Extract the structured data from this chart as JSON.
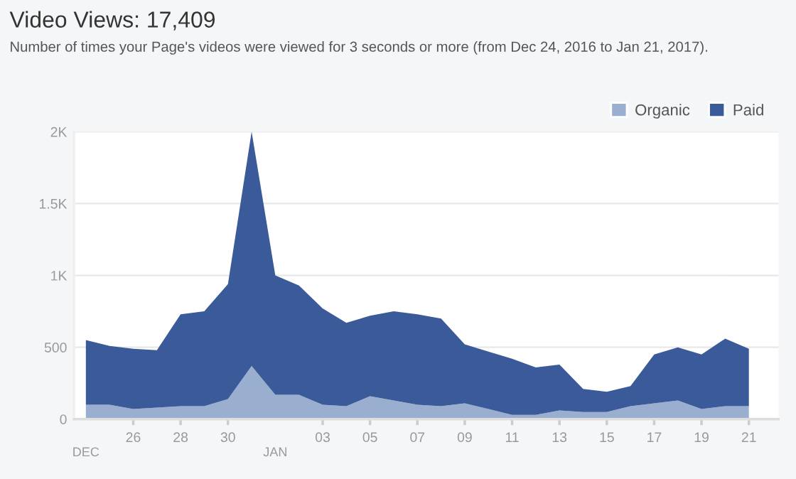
{
  "chart_data": {
    "type": "area",
    "stacked": true,
    "title": "Video Views: 17,409",
    "subtitle": "Number of times your Page's videos were viewed for 3 seconds or more (from Dec 24, 2016 to Jan 21, 2017).",
    "x": [
      "2016-12-24",
      "2016-12-25",
      "2016-12-26",
      "2016-12-27",
      "2016-12-28",
      "2016-12-29",
      "2016-12-30",
      "2016-12-31",
      "2017-01-01",
      "2017-01-02",
      "2017-01-03",
      "2017-01-04",
      "2017-01-05",
      "2017-01-06",
      "2017-01-07",
      "2017-01-08",
      "2017-01-09",
      "2017-01-10",
      "2017-01-11",
      "2017-01-12",
      "2017-01-13",
      "2017-01-14",
      "2017-01-15",
      "2017-01-16",
      "2017-01-17",
      "2017-01-18",
      "2017-01-19",
      "2017-01-20",
      "2017-01-21"
    ],
    "series": [
      {
        "name": "Organic",
        "color": "#9aaed0",
        "values": [
          100,
          100,
          70,
          80,
          90,
          90,
          140,
          370,
          170,
          170,
          100,
          90,
          160,
          130,
          100,
          90,
          110,
          70,
          30,
          30,
          60,
          50,
          50,
          90,
          110,
          130,
          70,
          90,
          90
        ]
      },
      {
        "name": "Paid",
        "color": "#3b5a99",
        "values": [
          450,
          410,
          420,
          400,
          640,
          660,
          800,
          1630,
          830,
          760,
          670,
          580,
          560,
          620,
          630,
          610,
          410,
          400,
          390,
          330,
          320,
          160,
          140,
          140,
          340,
          370,
          380,
          470,
          400
        ]
      }
    ],
    "xlim": [
      "2016-12-23T12:00",
      "2017-01-22T06:00"
    ],
    "xticks": [
      {
        "value": "2016-12-26",
        "label": "26"
      },
      {
        "value": "2016-12-28",
        "label": "28"
      },
      {
        "value": "2016-12-30",
        "label": "30"
      },
      {
        "value": "2017-01-03",
        "label": "03"
      },
      {
        "value": "2017-01-05",
        "label": "05"
      },
      {
        "value": "2017-01-07",
        "label": "07"
      },
      {
        "value": "2017-01-09",
        "label": "09"
      },
      {
        "value": "2017-01-11",
        "label": "11"
      },
      {
        "value": "2017-01-13",
        "label": "13"
      },
      {
        "value": "2017-01-15",
        "label": "15"
      },
      {
        "value": "2017-01-17",
        "label": "17"
      },
      {
        "value": "2017-01-19",
        "label": "19"
      },
      {
        "value": "2017-01-21",
        "label": "21"
      }
    ],
    "x2lim": [
      "2016-12-23T12:00",
      "2017-01-22T06:00"
    ],
    "x2ticks": [
      {
        "value": "2016-12-24",
        "label": "DEC"
      },
      {
        "value": "2017-01-01",
        "label": "JAN"
      }
    ],
    "ylim": [
      0,
      2000
    ],
    "yticks": [
      0,
      500,
      {
        "value": 1000,
        "label": "1K"
      },
      {
        "value": 1500,
        "label": "1.5K"
      },
      {
        "value": 2000,
        "label": "2K"
      }
    ],
    "grid": "y",
    "legend": "top right"
  }
}
